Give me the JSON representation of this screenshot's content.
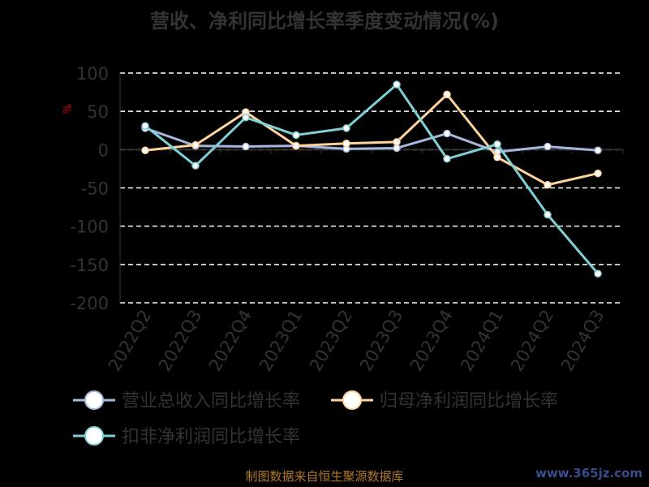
{
  "chart_data": {
    "type": "line",
    "title": "营收、净利同比增长率季度变动情况(%)",
    "ylabel": "%",
    "categories": [
      "2022Q2",
      "2022Q3",
      "2022Q4",
      "2023Q1",
      "2023Q2",
      "2023Q3",
      "2023Q4",
      "2024Q1",
      "2024Q2",
      "2024Q3"
    ],
    "y_ticks": [
      100,
      50,
      0,
      -50,
      -100,
      -150,
      -200
    ],
    "ylim": [
      -200,
      100
    ],
    "grid": true,
    "legend_position": "bottom",
    "series": [
      {
        "name": "营业总收入同比增长率",
        "color": "#a7b8e0",
        "values": [
          28,
          5,
          4,
          5,
          1,
          2,
          21,
          -3,
          4,
          -1
        ]
      },
      {
        "name": "归母净利润同比增长率",
        "color": "#ffd39b",
        "values": [
          -1,
          6,
          49,
          5,
          8,
          10,
          72,
          -10,
          -46,
          -31
        ]
      },
      {
        "name": "扣非净利润同比增长率",
        "color": "#7fd0d4",
        "values": [
          31,
          -21,
          42,
          19,
          28,
          85,
          -12,
          7,
          -85,
          -162
        ]
      }
    ]
  },
  "footer": {
    "source": "制图数据来自恒生聚源数据库"
  },
  "watermark": "www.365jz.com"
}
